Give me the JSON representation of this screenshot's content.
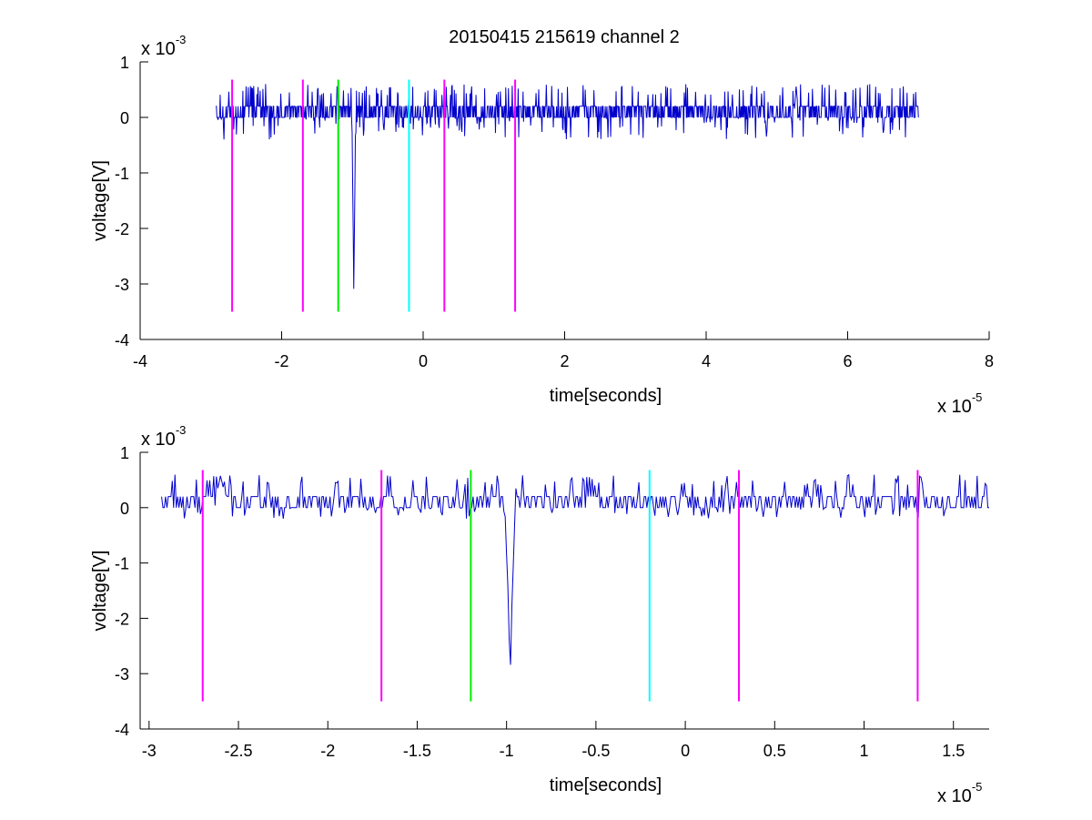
{
  "figure": {
    "title": "20150415 215619 channel 2"
  },
  "chart_data": [
    {
      "type": "line",
      "title": "20150415 215619 channel 2",
      "xlabel": "time[seconds]",
      "ylabel": "voltage[V]",
      "x_multiplier": {
        "base": "x 10",
        "exp": "-5"
      },
      "y_multiplier": {
        "base": "x 10",
        "exp": "-3"
      },
      "x_scale": 1e-05,
      "y_scale": 0.001,
      "xlim": [
        -4e-05,
        8e-05
      ],
      "ylim": [
        -0.004,
        0.001
      ],
      "xticks": [
        -4e-05,
        -2e-05,
        0,
        2e-05,
        4e-05,
        6e-05,
        8e-05
      ],
      "xtick_labels": [
        "-4",
        "-2",
        "0",
        "2",
        "4",
        "6",
        "8"
      ],
      "yticks": [
        0.001,
        0,
        -0.001,
        -0.002,
        -0.003,
        -0.004
      ],
      "ytick_labels": [
        "1",
        "0",
        "-1",
        "-2",
        "-3",
        "-4"
      ],
      "grid": false,
      "series": [
        {
          "color": "#0000cc",
          "x_range": [
            -2.93e-05,
            7e-05
          ],
          "sample_count": 1300,
          "baseline_levels": [
            0.0,
            0.0002
          ],
          "noise_max": 0.0006,
          "noise_min": -0.0004,
          "events": [
            {
              "x": -9.8e-06,
              "y": -0.0032
            },
            {
              "x": 5.27e-05,
              "y": 0.0006
            },
            {
              "x": 4.85e-05,
              "y": -0.0004
            }
          ]
        }
      ],
      "markers": [
        {
          "x": -2.7e-05,
          "color": "#ff00ff",
          "y_range": [
            -0.0035,
            0.00068
          ]
        },
        {
          "x": -1.7e-05,
          "color": "#ff00ff",
          "y_range": [
            -0.0035,
            0.00068
          ]
        },
        {
          "x": -1.2e-05,
          "color": "#00ee00",
          "y_range": [
            -0.0035,
            0.00068
          ]
        },
        {
          "x": -2e-06,
          "color": "#00ffff",
          "y_range": [
            -0.0035,
            0.00068
          ]
        },
        {
          "x": 3e-06,
          "color": "#ff00ff",
          "y_range": [
            -0.0035,
            0.00068
          ]
        },
        {
          "x": 1.3e-05,
          "color": "#ff00ff",
          "y_range": [
            -0.0035,
            0.00068
          ]
        }
      ]
    },
    {
      "type": "line",
      "title": "",
      "xlabel": "time[seconds]",
      "ylabel": "voltage[V]",
      "x_multiplier": {
        "base": "x 10",
        "exp": "-5"
      },
      "y_multiplier": {
        "base": "x 10",
        "exp": "-3"
      },
      "x_scale": 1e-05,
      "y_scale": 0.001,
      "xlim": [
        -3.05e-05,
        1.7e-05
      ],
      "ylim": [
        -0.004,
        0.001
      ],
      "xticks": [
        -3e-05,
        -2.5e-05,
        -2e-05,
        -1.5e-05,
        -1e-05,
        -5e-06,
        0,
        5e-06,
        1e-05,
        1.5e-05
      ],
      "xtick_labels": [
        "-3",
        "-2.5",
        "-2",
        "-1.5",
        "-1",
        "-0.5",
        "0",
        "0.5",
        "1",
        "1.5"
      ],
      "yticks": [
        0.001,
        0,
        -0.001,
        -0.002,
        -0.003,
        -0.004
      ],
      "ytick_labels": [
        "1",
        "0",
        "-1",
        "-2",
        "-3",
        "-4"
      ],
      "grid": false,
      "series": [
        {
          "color": "#0000cc",
          "x_range": [
            -2.93e-05,
            1.7e-05
          ],
          "sample_count": 620,
          "baseline_levels": [
            0.0,
            0.0002
          ],
          "noise_max": 0.0006,
          "noise_min": -0.0002,
          "events": [
            {
              "x": -9.8e-06,
              "y": -0.0032
            },
            {
              "x": -2.6e-05,
              "y": 0.0006
            }
          ]
        }
      ],
      "markers": [
        {
          "x": -2.7e-05,
          "color": "#ff00ff",
          "y_range": [
            -0.0035,
            0.00068
          ]
        },
        {
          "x": -1.7e-05,
          "color": "#ff00ff",
          "y_range": [
            -0.0035,
            0.00068
          ]
        },
        {
          "x": -1.2e-05,
          "color": "#00ee00",
          "y_range": [
            -0.0035,
            0.00068
          ]
        },
        {
          "x": -2e-06,
          "color": "#00ffff",
          "y_range": [
            -0.0035,
            0.00068
          ]
        },
        {
          "x": 3e-06,
          "color": "#ff00ff",
          "y_range": [
            -0.0035,
            0.00068
          ]
        },
        {
          "x": 1.3e-05,
          "color": "#ff00ff",
          "y_range": [
            -0.0035,
            0.00068
          ]
        }
      ]
    }
  ]
}
